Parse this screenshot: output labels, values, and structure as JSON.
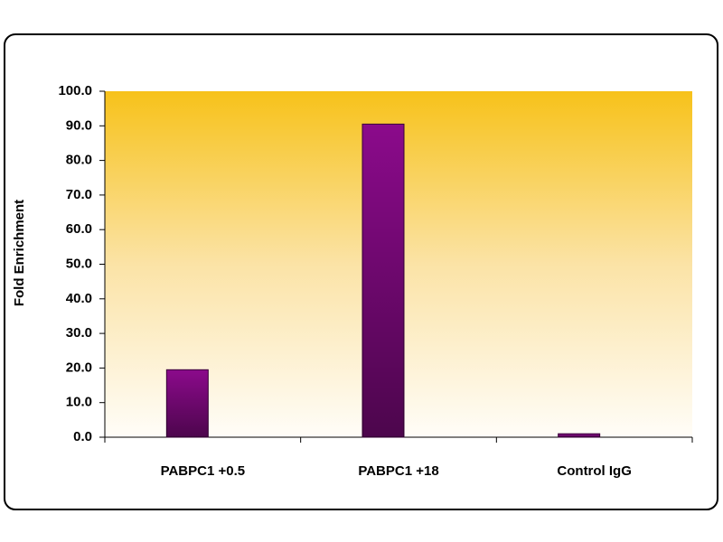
{
  "chart_data": {
    "type": "bar",
    "y_label": "Fold Enrichment",
    "categories": [
      "PABPC1 +0.5",
      "PABPC1 +18",
      "Control IgG"
    ],
    "values": [
      19.5,
      90.5,
      1.0
    ],
    "color": "#8b0a8b",
    "ylim": [
      0,
      100
    ],
    "yticks": [
      {
        "value": 0,
        "label": "0.0"
      },
      {
        "value": 10,
        "label": "10.0"
      },
      {
        "value": 20,
        "label": "20.0"
      },
      {
        "value": 30,
        "label": "30.0"
      },
      {
        "value": 40,
        "label": "40.0"
      },
      {
        "value": 50,
        "label": "50.0"
      },
      {
        "value": 60,
        "label": "60.0"
      },
      {
        "value": 70,
        "label": "70.0"
      },
      {
        "value": 80,
        "label": "80.0"
      },
      {
        "value": 90,
        "label": "90.0"
      },
      {
        "value": 100,
        "label": "100.0"
      }
    ],
    "grid": false
  }
}
